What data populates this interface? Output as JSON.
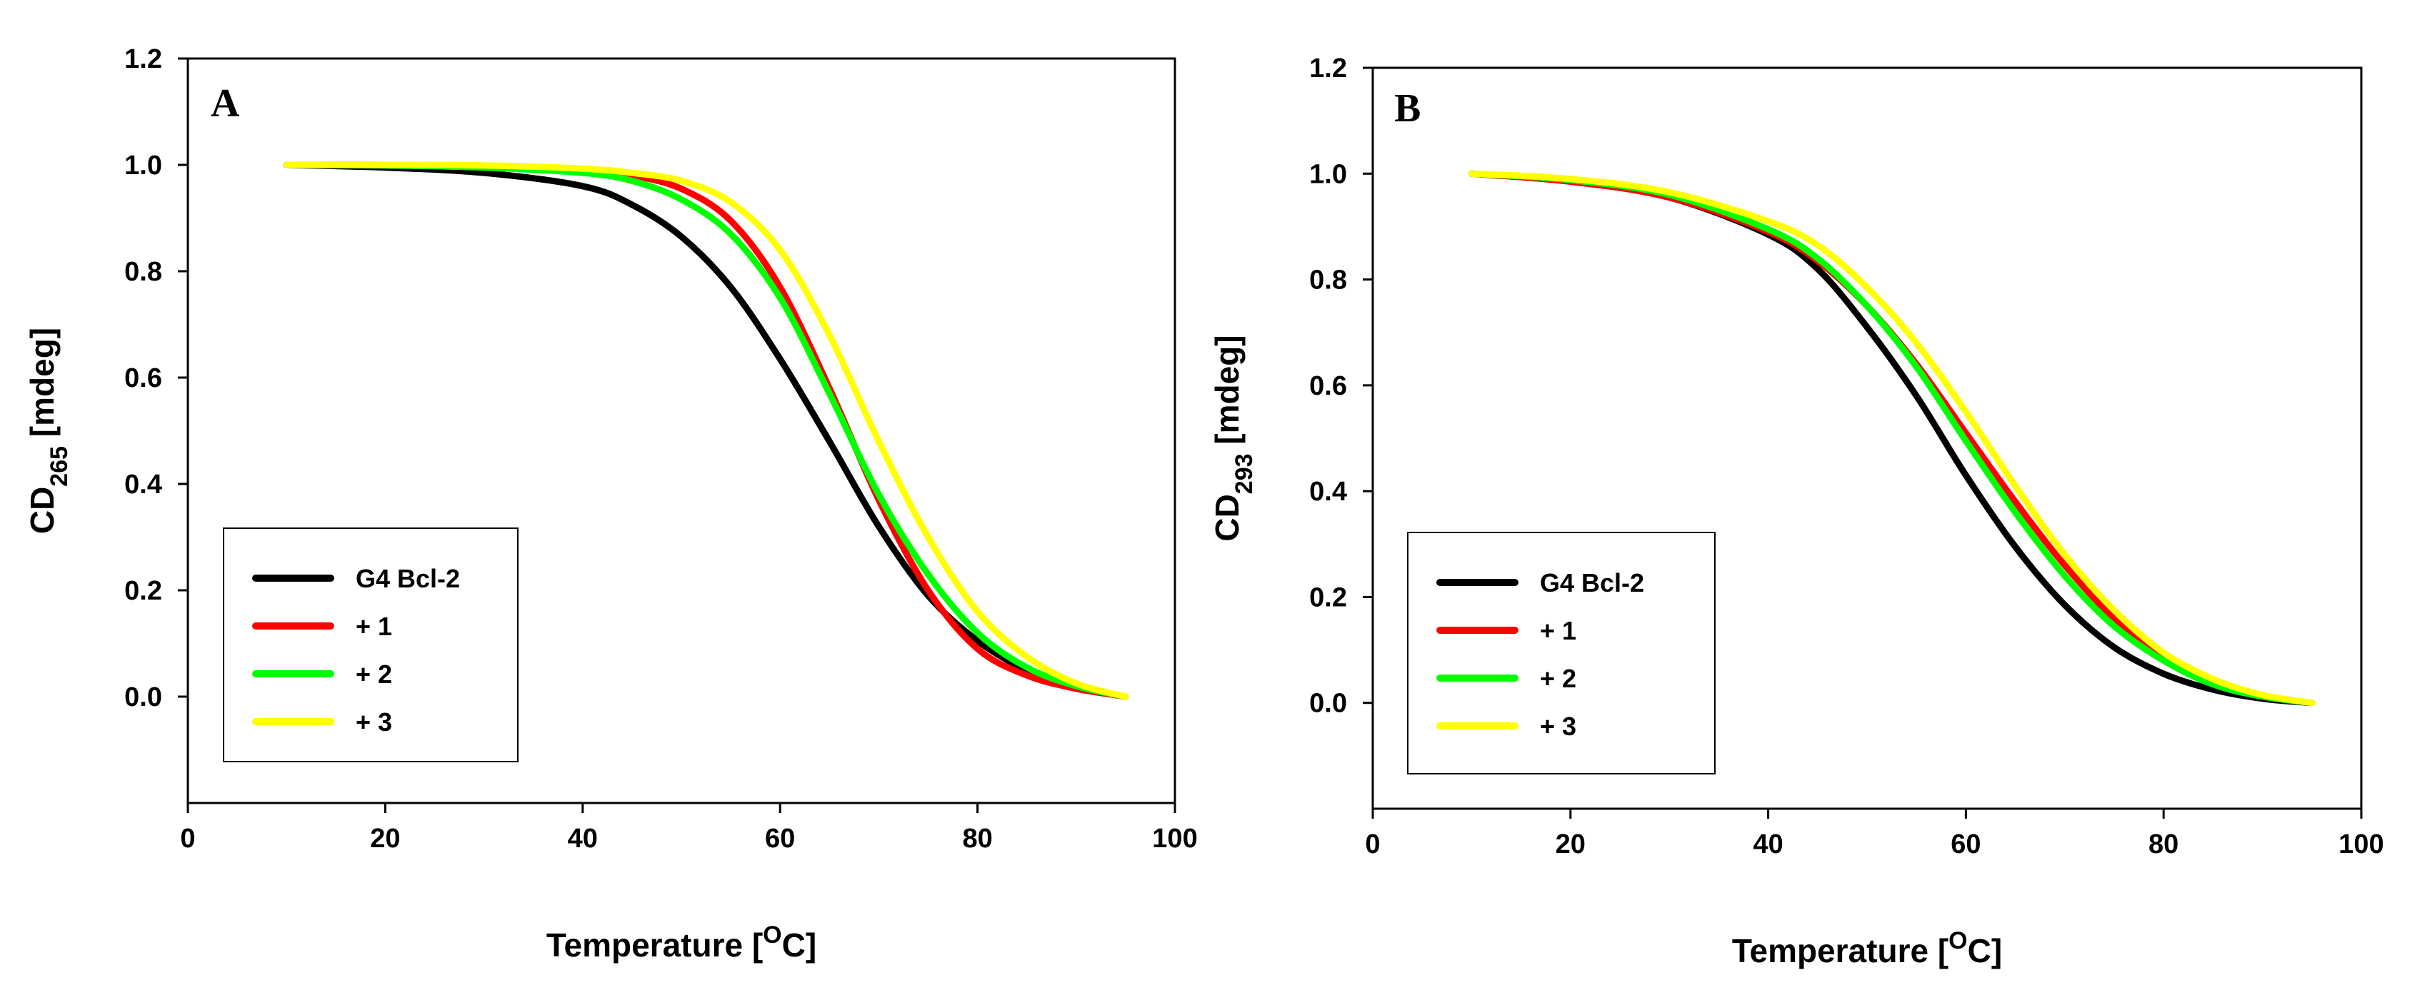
{
  "chart_data": [
    {
      "type": "line",
      "panel": "A",
      "xlabel": "Temperature [°C]",
      "ylabel": "CD265 [mdeg]",
      "xlim": [
        0,
        100
      ],
      "ylim": [
        -0.2,
        1.2
      ],
      "xticks": [
        "0",
        "20",
        "40",
        "60",
        "80",
        "100"
      ],
      "yticks": [
        "0.0",
        "0.2",
        "0.4",
        "0.6",
        "0.8",
        "1.0",
        "1.2"
      ],
      "legend_position": "bottom-left",
      "grid": false,
      "x": [
        10,
        20,
        30,
        40,
        45,
        50,
        55,
        60,
        65,
        70,
        75,
        80,
        85,
        90,
        95
      ],
      "series": [
        {
          "name": "G4 Bcl-2",
          "color": "#000000",
          "values": [
            1.0,
            0.995,
            0.985,
            0.96,
            0.925,
            0.865,
            0.77,
            0.635,
            0.48,
            0.32,
            0.19,
            0.105,
            0.05,
            0.018,
            0.0
          ]
        },
        {
          "name": "+ 1",
          "color": "#ff0000",
          "values": [
            1.0,
            1.0,
            0.998,
            0.99,
            0.98,
            0.955,
            0.895,
            0.77,
            0.58,
            0.37,
            0.2,
            0.09,
            0.04,
            0.015,
            0.0
          ]
        },
        {
          "name": "+ 2",
          "color": "#00ff00",
          "values": [
            1.0,
            0.999,
            0.995,
            0.985,
            0.97,
            0.935,
            0.87,
            0.75,
            0.57,
            0.38,
            0.23,
            0.12,
            0.055,
            0.02,
            0.0
          ]
        },
        {
          "name": "+ 3",
          "color": "#ffff00",
          "values": [
            1.0,
            1.0,
            0.999,
            0.993,
            0.985,
            0.97,
            0.93,
            0.84,
            0.68,
            0.48,
            0.3,
            0.16,
            0.075,
            0.025,
            0.0
          ]
        }
      ]
    },
    {
      "type": "line",
      "panel": "B",
      "xlabel": "Temperature [°C]",
      "ylabel": "CD293 [mdeg]",
      "xlim": [
        0,
        100
      ],
      "ylim": [
        -0.2,
        1.2
      ],
      "xticks": [
        "0",
        "20",
        "40",
        "60",
        "80",
        "100"
      ],
      "yticks": [
        "0.0",
        "0.2",
        "0.4",
        "0.6",
        "0.8",
        "1.0",
        "1.2"
      ],
      "legend_position": "bottom-left",
      "grid": false,
      "x": [
        10,
        20,
        30,
        40,
        45,
        50,
        55,
        60,
        65,
        70,
        75,
        80,
        85,
        90,
        95
      ],
      "series": [
        {
          "name": "G4 Bcl-2",
          "color": "#000000",
          "values": [
            1.0,
            0.985,
            0.955,
            0.885,
            0.82,
            0.71,
            0.58,
            0.43,
            0.295,
            0.185,
            0.105,
            0.055,
            0.025,
            0.008,
            0.0
          ]
        },
        {
          "name": "+ 1",
          "color": "#ff0000",
          "values": [
            1.0,
            0.985,
            0.955,
            0.89,
            0.835,
            0.75,
            0.64,
            0.51,
            0.38,
            0.26,
            0.16,
            0.09,
            0.04,
            0.013,
            0.0
          ]
        },
        {
          "name": "+ 2",
          "color": "#00ff00",
          "values": [
            1.0,
            0.988,
            0.96,
            0.895,
            0.84,
            0.75,
            0.635,
            0.495,
            0.36,
            0.24,
            0.145,
            0.08,
            0.035,
            0.012,
            0.0
          ]
        },
        {
          "name": "+ 3",
          "color": "#ffff00",
          "values": [
            1.0,
            0.99,
            0.965,
            0.91,
            0.865,
            0.785,
            0.68,
            0.55,
            0.41,
            0.28,
            0.175,
            0.095,
            0.045,
            0.015,
            0.0
          ]
        }
      ]
    }
  ]
}
